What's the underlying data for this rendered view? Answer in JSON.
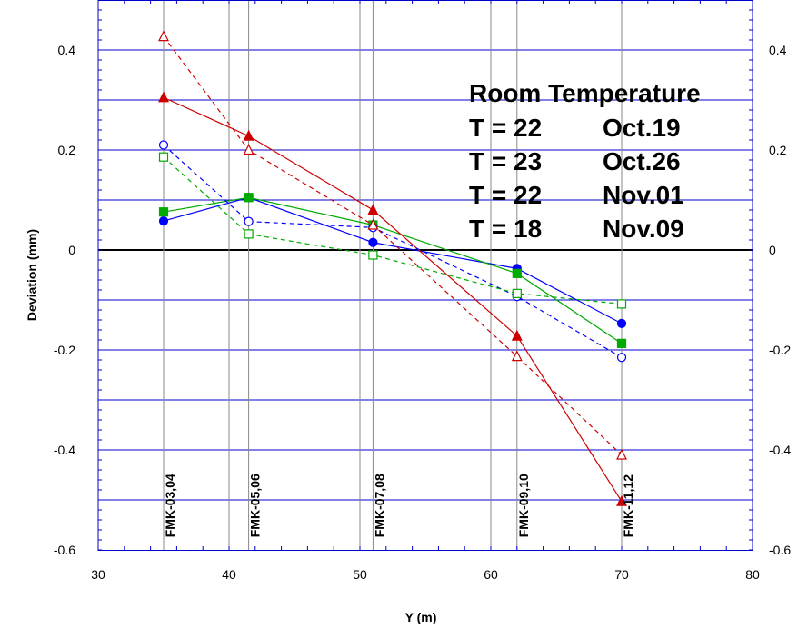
{
  "chart_data": {
    "type": "line",
    "xlabel": "Y (m)",
    "ylabel": "Deviation (mm)",
    "xlim": [
      30,
      80
    ],
    "ylim": [
      -0.6,
      0.5
    ],
    "x_ticks": [
      30,
      40,
      50,
      60,
      70,
      80
    ],
    "x_tick_labels": [
      "30",
      "40",
      "50",
      "60",
      "70",
      "80"
    ],
    "y_ticks": [
      0.4,
      0.2,
      0,
      -0.2,
      -0.4,
      -0.6
    ],
    "y_tick_labels": [
      "0.4",
      "0.2",
      "0",
      "-0.2",
      "-0.4",
      "-0.6"
    ],
    "y_minor_grid": [
      0.3,
      0.1,
      -0.1,
      -0.3,
      -0.5
    ],
    "grid": true,
    "x": [
      35,
      41.5,
      51,
      62,
      70
    ],
    "category_labels": [
      "FMK-03,04",
      "FMK-05,06",
      "FMK-07,08",
      "FMK-09,10",
      "FMK-11,12"
    ],
    "legend_title": "Room Temperature",
    "legend_placement": "top-right",
    "series": [
      {
        "name": "T = 22      Oct.19",
        "label_t": "T = 22",
        "label_d": "Oct.19",
        "color": "#0000ff",
        "marker": "circle-filled",
        "dashed": false,
        "values": [
          0.058,
          0.105,
          0.015,
          -0.037,
          -0.147
        ]
      },
      {
        "name": "T = 23      Oct.26",
        "label_t": "T = 23",
        "label_d": "Oct.26",
        "color": "#00aa00",
        "marker": "square-filled",
        "dashed": false,
        "values": [
          0.076,
          0.105,
          0.05,
          -0.047,
          -0.187
        ]
      },
      {
        "name": "T = 22      Nov.01",
        "label_t": "T = 22",
        "label_d": "Nov.01",
        "color": "#cc0000",
        "marker": "triangle-filled",
        "dashed": false,
        "values": [
          0.305,
          0.228,
          0.08,
          -0.172,
          -0.503
        ]
      },
      {
        "name": "T = 18      Nov.09",
        "label_t": "T = 18",
        "label_d": "Nov.09",
        "color": "#0000ff",
        "marker": "circle-open",
        "dashed": true,
        "values": [
          0.21,
          0.057,
          0.045,
          -0.093,
          -0.215
        ]
      },
      {
        "name": "",
        "color": "#00aa00",
        "marker": "square-open",
        "dashed": true,
        "values": [
          0.186,
          0.032,
          -0.01,
          -0.087,
          -0.108
        ]
      },
      {
        "name": "",
        "color": "#cc0000",
        "marker": "triangle-open",
        "dashed": true,
        "values": [
          0.427,
          0.2,
          0.05,
          -0.213,
          -0.41
        ]
      }
    ]
  }
}
